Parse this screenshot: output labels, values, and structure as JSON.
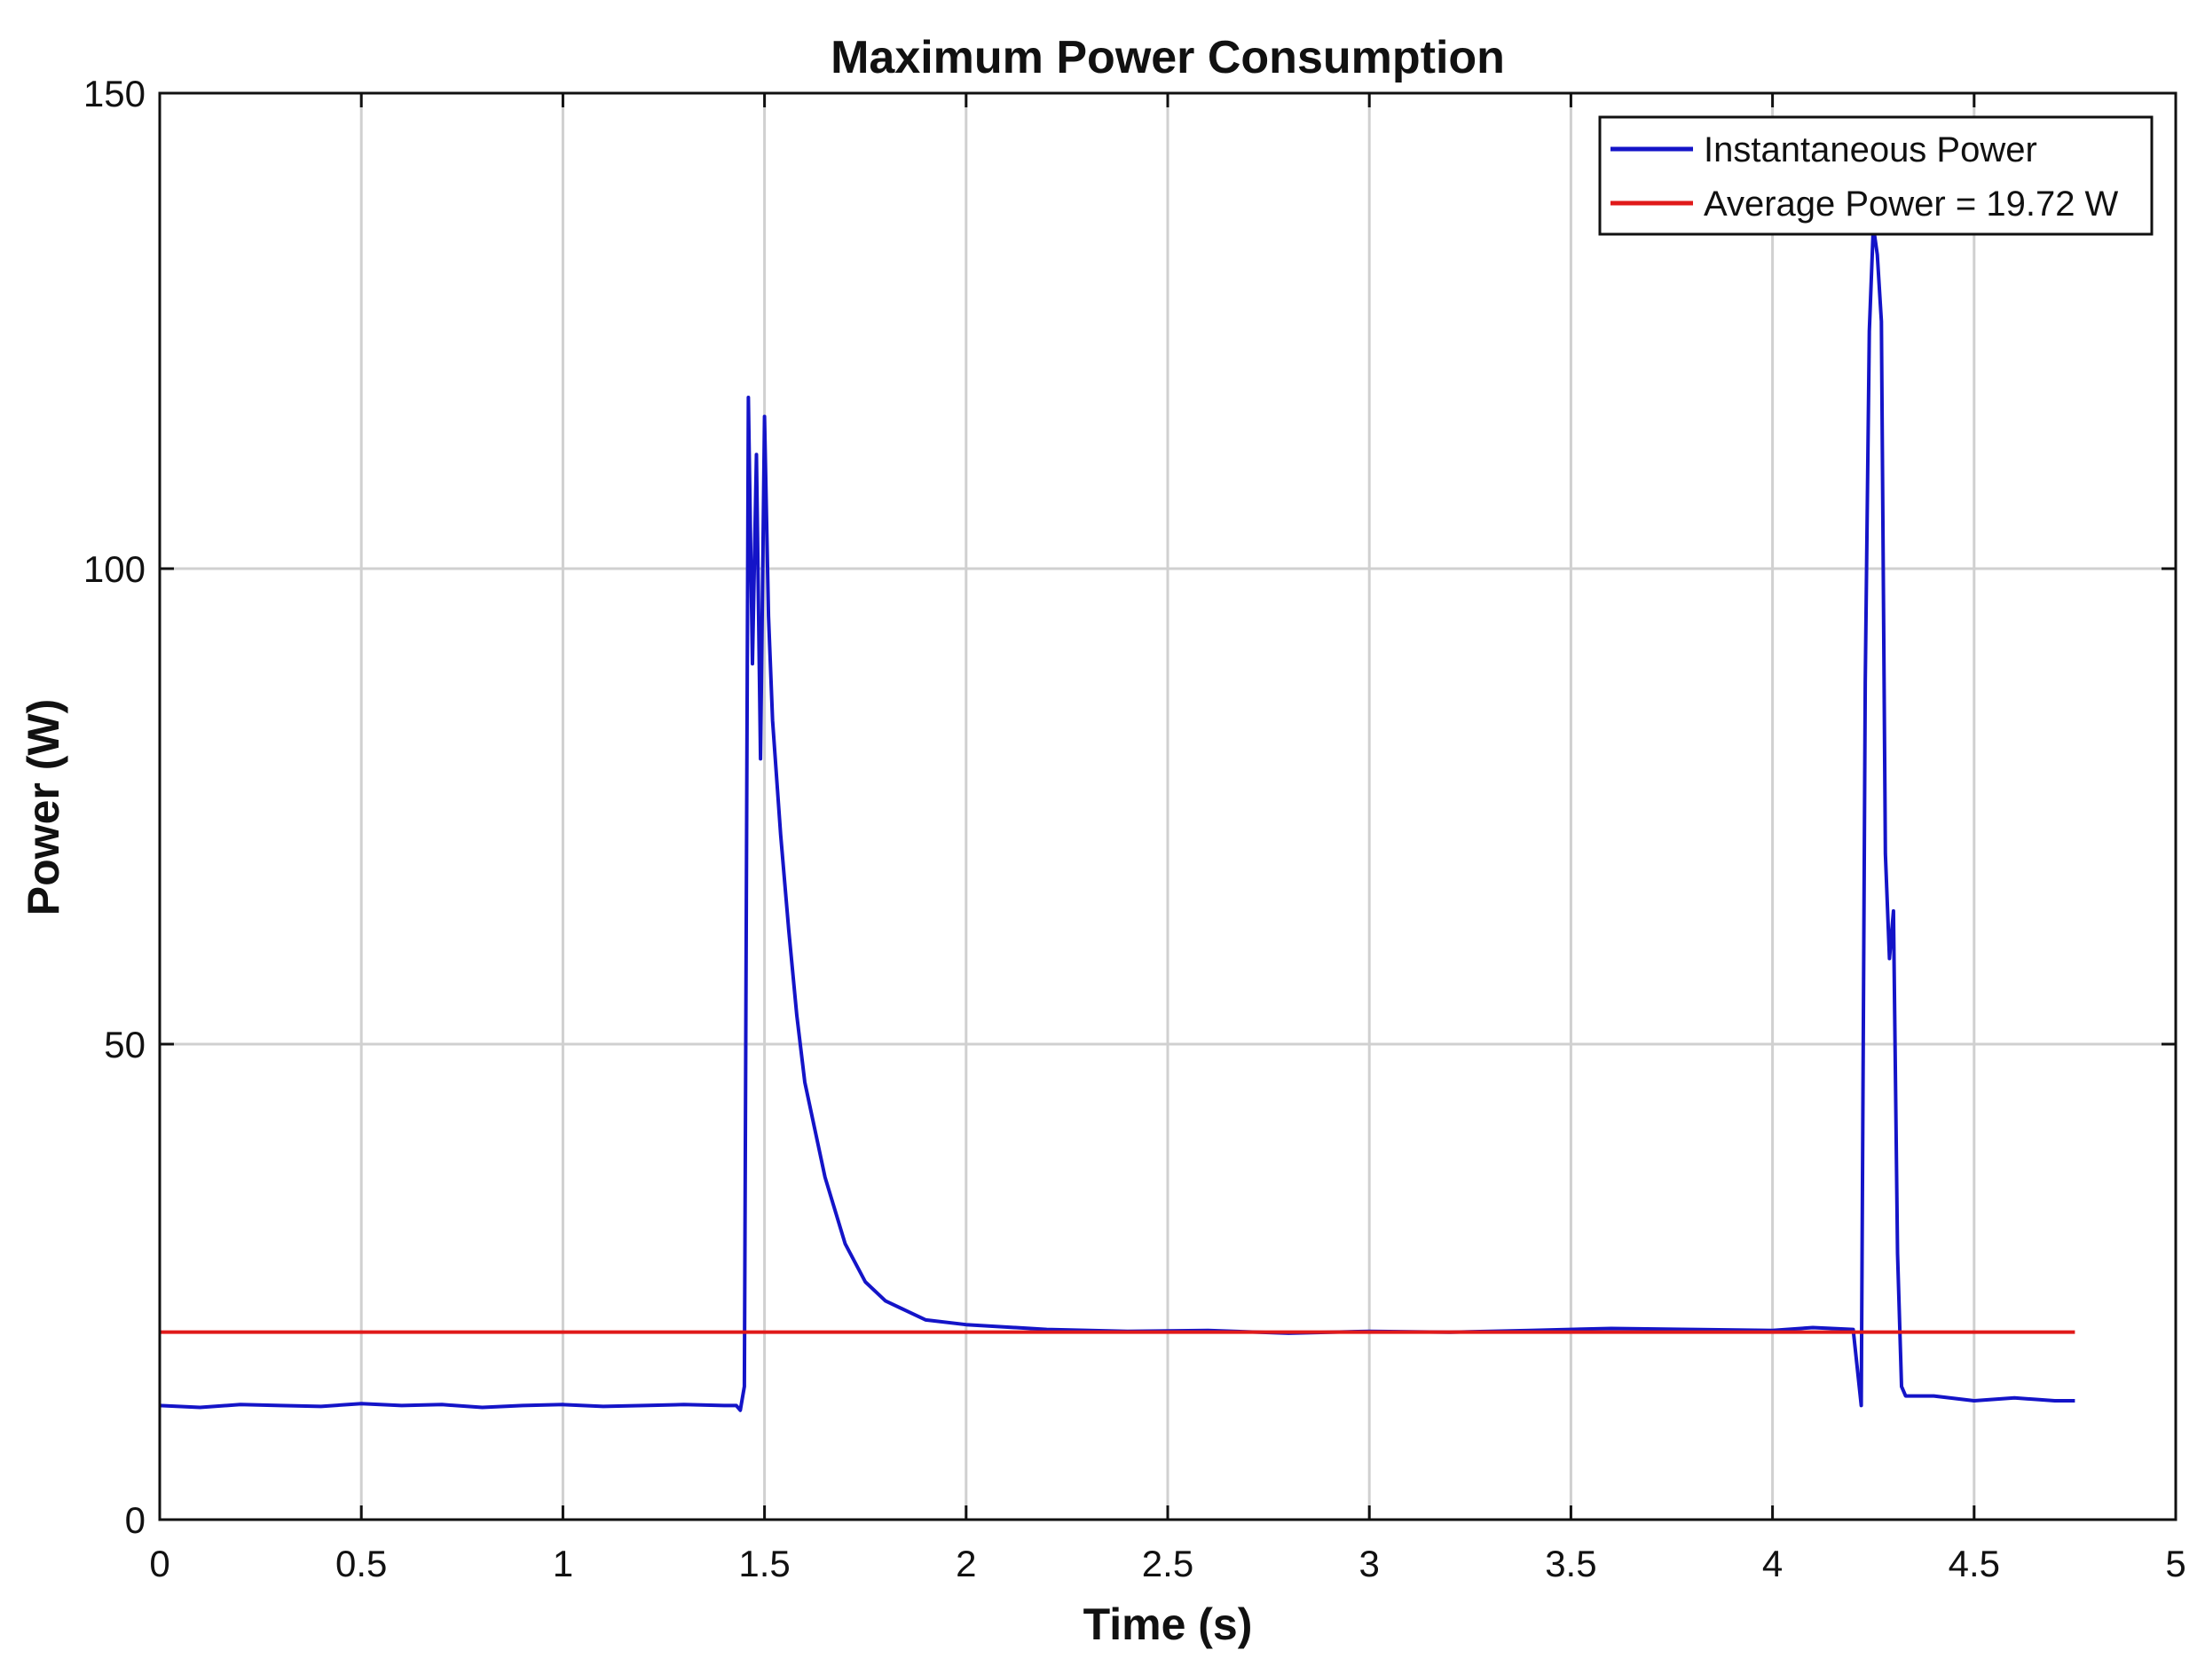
{
  "chart_data": {
    "type": "line",
    "title": "Maximum Power Consumption",
    "xlabel": "Time (s)",
    "ylabel": "Power (W)",
    "xlim": [
      0,
      5
    ],
    "ylim": [
      0,
      150
    ],
    "xticks": [
      0,
      0.5,
      1,
      1.5,
      2,
      2.5,
      3,
      3.5,
      4,
      4.5,
      5
    ],
    "xtick_labels": [
      "0",
      "0.5",
      "1",
      "1.5",
      "2",
      "2.5",
      "3",
      "3.5",
      "4",
      "4.5",
      "5"
    ],
    "yticks": [
      0,
      50,
      100,
      150
    ],
    "ytick_labels": [
      "0",
      "50",
      "100",
      "150"
    ],
    "grid": true,
    "legend_position": "top-right",
    "series": [
      {
        "name": "Instantaneous Power",
        "color": "#1414c8",
        "x": [
          0,
          0.1,
          0.2,
          0.3,
          0.4,
          0.5,
          0.6,
          0.7,
          0.8,
          0.9,
          1.0,
          1.1,
          1.2,
          1.3,
          1.4,
          1.43,
          1.44,
          1.45,
          1.46,
          1.47,
          1.48,
          1.49,
          1.5,
          1.51,
          1.52,
          1.54,
          1.56,
          1.58,
          1.6,
          1.65,
          1.7,
          1.75,
          1.8,
          1.85,
          1.9,
          2.0,
          2.2,
          2.4,
          2.6,
          2.8,
          3.0,
          3.2,
          3.4,
          3.6,
          3.8,
          4.0,
          4.1,
          4.2,
          4.22,
          4.23,
          4.24,
          4.25,
          4.26,
          4.27,
          4.28,
          4.29,
          4.3,
          4.31,
          4.32,
          4.33,
          4.35,
          4.4,
          4.5,
          4.6,
          4.7,
          4.75
        ],
        "values": [
          12,
          11.8,
          12.1,
          12,
          11.9,
          12.2,
          12,
          12.1,
          11.8,
          12,
          12.1,
          11.9,
          12,
          12.1,
          12,
          12,
          11.5,
          14,
          118,
          90,
          112,
          80,
          116,
          95,
          84,
          72,
          62,
          53,
          46,
          36,
          29,
          25,
          23,
          22,
          21,
          20.5,
          20,
          19.8,
          19.9,
          19.6,
          19.8,
          19.7,
          19.9,
          20.1,
          20,
          19.9,
          20.2,
          20,
          12,
          88,
          125,
          136,
          133,
          126,
          70,
          59,
          64,
          28,
          14,
          13,
          13,
          13,
          12.5,
          12.8,
          12.5,
          12.5
        ]
      },
      {
        "name": "Average Power = 19.72 W",
        "color": "#e01a1a",
        "x": [
          0,
          4.75
        ],
        "values": [
          19.72,
          19.72
        ]
      }
    ]
  }
}
